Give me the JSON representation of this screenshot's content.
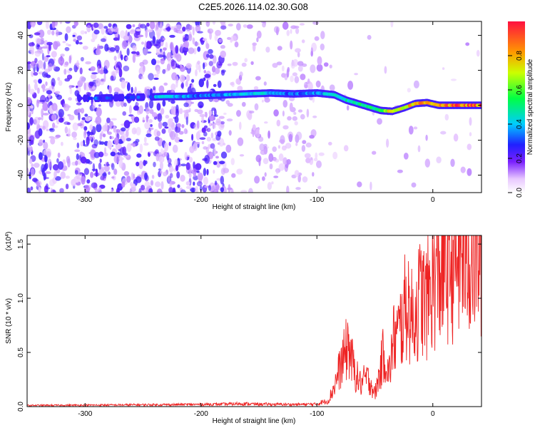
{
  "title": "C2E5.2026.114.02.30.G08",
  "chart_data": [
    {
      "type": "heatmap",
      "xlabel": "Height of straight line (km)",
      "ylabel": "Frequency (Hz)",
      "xlim": [
        -350,
        42
      ],
      "ylim": [
        -50,
        48
      ],
      "xticks": [
        -300,
        -200,
        -100,
        0
      ],
      "xtick_labels": [
        "-300",
        "-200",
        "-100",
        "0"
      ],
      "yticks": [
        -40,
        -20,
        0,
        20,
        40
      ],
      "ytick_labels": [
        "-40",
        "-20",
        "0",
        "20",
        "40"
      ],
      "colorbar": {
        "label": "Normalized spectral amplitude",
        "range": [
          0,
          1
        ],
        "ticks": [
          0.0,
          0.2,
          0.4,
          0.6,
          0.8
        ],
        "tick_labels": [
          "0.0",
          "0.2",
          "0.4",
          "0.6",
          "0.8"
        ]
      },
      "ridge": [
        {
          "x": -305,
          "y": 4,
          "amp": 0.3
        },
        {
          "x": -290,
          "y": 4,
          "amp": 0.35
        },
        {
          "x": -260,
          "y": 4.5,
          "amp": 0.3
        },
        {
          "x": -230,
          "y": 5,
          "amp": 0.45
        },
        {
          "x": -215,
          "y": 5,
          "amp": 0.4
        },
        {
          "x": -200,
          "y": 5.5,
          "amp": 0.35
        },
        {
          "x": -180,
          "y": 6,
          "amp": 0.4
        },
        {
          "x": -160,
          "y": 6.5,
          "amp": 0.45
        },
        {
          "x": -140,
          "y": 7,
          "amp": 0.45
        },
        {
          "x": -120,
          "y": 6.5,
          "amp": 0.35
        },
        {
          "x": -100,
          "y": 7,
          "amp": 0.4
        },
        {
          "x": -85,
          "y": 6,
          "amp": 0.45
        },
        {
          "x": -75,
          "y": 3,
          "amp": 0.5
        },
        {
          "x": -65,
          "y": 1,
          "amp": 0.55
        },
        {
          "x": -55,
          "y": -1,
          "amp": 0.55
        },
        {
          "x": -45,
          "y": -3,
          "amp": 0.65
        },
        {
          "x": -35,
          "y": -3.5,
          "amp": 0.8
        },
        {
          "x": -25,
          "y": -1.5,
          "amp": 0.8
        },
        {
          "x": -15,
          "y": 1,
          "amp": 0.9
        },
        {
          "x": -5,
          "y": 1.5,
          "amp": 0.9
        },
        {
          "x": 5,
          "y": 0,
          "amp": 0.95
        },
        {
          "x": 15,
          "y": 0,
          "amp": 0.95
        },
        {
          "x": 30,
          "y": 0,
          "amp": 0.95
        },
        {
          "x": 42,
          "y": 0,
          "amp": 0.95
        }
      ]
    },
    {
      "type": "line",
      "xlabel": "Height of straight line (km)",
      "ylabel": "SNR (10 * v/v)",
      "y_multiplier": "(x10",
      "y_multiplier_exp": "4",
      "y_multiplier_close": ")",
      "xlim": [
        -350,
        42
      ],
      "ylim": [
        0,
        1.58
      ],
      "xticks": [
        -300,
        -200,
        -100,
        0
      ],
      "xtick_labels": [
        "-300",
        "-200",
        "-100",
        "0"
      ],
      "yticks": [
        0.0,
        0.5,
        1.0,
        1.5
      ],
      "ytick_labels": [
        "0.0",
        "0.5",
        "1.0",
        "1.5"
      ],
      "series": [
        {
          "color": "#ee2222",
          "x": [
            -350,
            -300,
            -250,
            -200,
            -180,
            -165,
            -150,
            -120,
            -100,
            -90,
            -85,
            -80,
            -76,
            -73,
            -70,
            -66,
            -62,
            -58,
            -54,
            -50,
            -46,
            -42,
            -38,
            -34,
            -30,
            -26,
            -22,
            -18,
            -14,
            -10,
            -6,
            -2,
            2,
            6,
            10,
            15,
            20,
            25,
            30,
            35,
            42
          ],
          "y": [
            0.01,
            0.012,
            0.015,
            0.018,
            0.02,
            0.025,
            0.02,
            0.018,
            0.02,
            0.06,
            0.2,
            0.38,
            0.5,
            0.62,
            0.45,
            0.3,
            0.22,
            0.28,
            0.25,
            0.12,
            0.32,
            0.55,
            0.3,
            0.65,
            0.7,
            0.85,
            1.05,
            0.85,
            0.95,
            1.1,
            1.0,
            1.15,
            1.25,
            1.3,
            1.35,
            1.42,
            1.45,
            1.48,
            1.5,
            1.52,
            1.53
          ]
        }
      ]
    }
  ]
}
